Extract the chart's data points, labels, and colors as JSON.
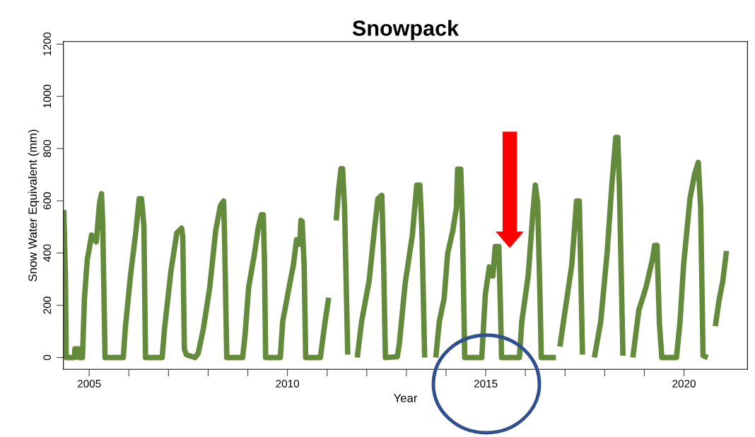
{
  "chart_data": {
    "type": "line",
    "title": "Snowpack",
    "xlabel": "Year",
    "ylabel": "Snow Water Equivalent (mm)",
    "xlim": [
      2004.35,
      2021.6
    ],
    "ylim": [
      -45,
      1210
    ],
    "xticks": [
      2005,
      {
        "value": 2006,
        "label": null
      },
      {
        "value": 2007,
        "label": null
      },
      {
        "value": 2008,
        "label": null
      },
      {
        "value": 2009,
        "label": null
      },
      2010,
      {
        "value": 2011,
        "label": null
      },
      {
        "value": 2012,
        "label": null
      },
      {
        "value": 2013,
        "label": null
      },
      {
        "value": 2014,
        "label": null
      },
      2015,
      {
        "value": 2016,
        "label": null
      },
      {
        "value": 2017,
        "label": null
      },
      {
        "value": 2018,
        "label": null
      },
      {
        "value": 2019,
        "label": null
      },
      2020
    ],
    "yticks": [
      0,
      200,
      400,
      600,
      800,
      1000,
      1200
    ],
    "grid": false,
    "marker": "none",
    "line_style": "solid",
    "series": [
      {
        "color": "#648a3c",
        "x": [
          2004.36,
          2004.4,
          2004.42,
          2004.63,
          2004.64,
          2004.72,
          2004.74,
          2004.83,
          2004.88,
          2004.95,
          2005.06,
          2005.18,
          2005.26,
          2005.31,
          2005.34,
          2005.4,
          2005.86,
          2005.91,
          2006.04,
          2006.18,
          2006.26,
          2006.32,
          2006.38,
          2006.42,
          2006.84,
          2006.9,
          2007.06,
          2007.21,
          2007.33,
          2007.36,
          2007.4,
          2007.45,
          2007.67,
          2007.75,
          2007.88,
          2008.04,
          2008.19,
          2008.31,
          2008.39,
          2008.41,
          2008.47,
          2008.87,
          2008.93,
          2009.02,
          2009.17,
          2009.26,
          2009.34,
          2009.39,
          2009.42,
          2009.45,
          2009.82,
          2009.88,
          2010.04,
          2010.15,
          2010.23,
          2010.31,
          2010.34,
          2010.37,
          2010.42,
          2010.46,
          2010.83,
          2010.95,
          2011.04,
          2011.14,
          2011.23,
          2011.29,
          2011.35,
          2011.39,
          2011.44,
          2011.52,
          2011.64,
          2011.76,
          2011.87,
          2012.06,
          2012.19,
          2012.28,
          2012.38,
          2012.42,
          2012.47,
          2012.77,
          2012.82,
          2012.97,
          2013.15,
          2013.26,
          2013.34,
          2013.39,
          2013.46,
          2013.6,
          2013.74,
          2013.83,
          2013.95,
          2014.04,
          2014.17,
          2014.26,
          2014.29,
          2014.37,
          2014.41,
          2014.47,
          2014.9,
          2014.99,
          2015.09,
          2015.18,
          2015.24,
          2015.33,
          2015.37,
          2015.4,
          2015.85,
          2015.91,
          2016.07,
          2016.19,
          2016.25,
          2016.31,
          2016.37,
          2016.4,
          2016.77,
          2016.82,
          2016.87,
          2017.02,
          2017.17,
          2017.29,
          2017.36,
          2017.39,
          2017.44,
          2017.6,
          2017.74,
          2017.9,
          2018.06,
          2018.18,
          2018.28,
          2018.33,
          2018.37,
          2018.46,
          2018.6,
          2018.71,
          2018.86,
          2019.04,
          2019.2,
          2019.26,
          2019.32,
          2019.38,
          2019.44,
          2019.81,
          2019.9,
          2019.99,
          2020.15,
          2020.27,
          2020.36,
          2020.42,
          2020.48,
          2020.6,
          2020.7,
          2020.79,
          2020.88,
          2020.98,
          2021.07
        ],
        "values": [
          565,
          312,
          0,
          0,
          33,
          33,
          0,
          0,
          225,
          373,
          469,
          443,
          591,
          627,
          521,
          0,
          0,
          111,
          312,
          486,
          608,
          608,
          503,
          0,
          0,
          111,
          329,
          477,
          495,
          460,
          33,
          11,
          0,
          16,
          111,
          268,
          486,
          582,
          599,
          486,
          0,
          0,
          85,
          268,
          399,
          495,
          547,
          547,
          373,
          0,
          0,
          138,
          268,
          355,
          451,
          434,
          525,
          521,
          355,
          0,
          0,
          138,
          229,
          null,
          525,
          643,
          723,
          723,
          573,
          11,
          null,
          0,
          138,
          294,
          486,
          608,
          621,
          399,
          0,
          3,
          51,
          286,
          469,
          660,
          660,
          486,
          0,
          null,
          0,
          138,
          225,
          399,
          486,
          573,
          721,
          721,
          530,
          0,
          0,
          242,
          347,
          312,
          425,
          425,
          199,
          0,
          0,
          138,
          312,
          556,
          660,
          592,
          225,
          0,
          0,
          null,
          42,
          199,
          355,
          599,
          599,
          382,
          11,
          null,
          0,
          138,
          399,
          660,
          843,
          843,
          660,
          7,
          null,
          0,
          181,
          268,
          373,
          429,
          429,
          129,
          0,
          0,
          138,
          355,
          608,
          704,
          747,
          573,
          7,
          0,
          null,
          120,
          216,
          294,
          408
        ]
      }
    ]
  }
}
